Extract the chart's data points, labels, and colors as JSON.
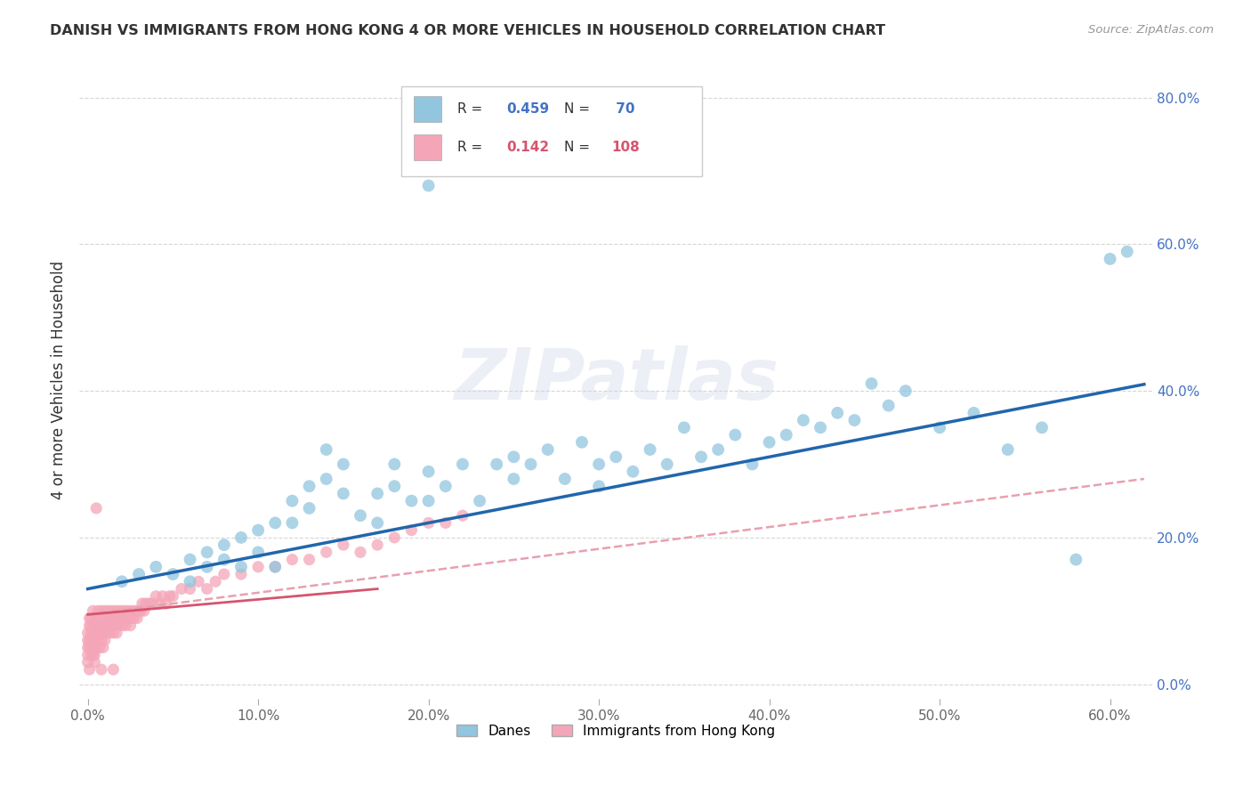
{
  "title": "DANISH VS IMMIGRANTS FROM HONG KONG 4 OR MORE VEHICLES IN HOUSEHOLD CORRELATION CHART",
  "source": "Source: ZipAtlas.com",
  "xlim": [
    -0.005,
    0.625
  ],
  "ylim": [
    -0.02,
    0.85
  ],
  "ylabel": "4 or more Vehicles in Household",
  "legend_label1": "Danes",
  "legend_label2": "Immigrants from Hong Kong",
  "R1": 0.459,
  "N1": 70,
  "R2": 0.142,
  "N2": 108,
  "blue_color": "#92C5DE",
  "pink_color": "#F4A6B8",
  "blue_line_color": "#2166AC",
  "pink_line_color": "#D6546E",
  "pink_dashed_color": "#E8A0AF",
  "watermark": "ZIPatlas",
  "danes_x": [
    0.02,
    0.03,
    0.04,
    0.05,
    0.06,
    0.06,
    0.07,
    0.07,
    0.08,
    0.08,
    0.09,
    0.09,
    0.1,
    0.1,
    0.11,
    0.11,
    0.12,
    0.12,
    0.13,
    0.13,
    0.14,
    0.14,
    0.15,
    0.15,
    0.16,
    0.17,
    0.17,
    0.18,
    0.18,
    0.19,
    0.2,
    0.2,
    0.21,
    0.22,
    0.23,
    0.24,
    0.25,
    0.25,
    0.26,
    0.27,
    0.28,
    0.29,
    0.3,
    0.3,
    0.31,
    0.32,
    0.33,
    0.34,
    0.35,
    0.36,
    0.37,
    0.38,
    0.39,
    0.4,
    0.41,
    0.42,
    0.43,
    0.44,
    0.45,
    0.46,
    0.47,
    0.48,
    0.5,
    0.52,
    0.54,
    0.56,
    0.58,
    0.6,
    0.61,
    0.2
  ],
  "danes_y": [
    0.14,
    0.15,
    0.16,
    0.15,
    0.17,
    0.14,
    0.16,
    0.18,
    0.17,
    0.19,
    0.2,
    0.16,
    0.21,
    0.18,
    0.22,
    0.16,
    0.22,
    0.25,
    0.24,
    0.27,
    0.28,
    0.32,
    0.26,
    0.3,
    0.23,
    0.26,
    0.22,
    0.27,
    0.3,
    0.25,
    0.25,
    0.29,
    0.27,
    0.3,
    0.25,
    0.3,
    0.28,
    0.31,
    0.3,
    0.32,
    0.28,
    0.33,
    0.27,
    0.3,
    0.31,
    0.29,
    0.32,
    0.3,
    0.35,
    0.31,
    0.32,
    0.34,
    0.3,
    0.33,
    0.34,
    0.36,
    0.35,
    0.37,
    0.36,
    0.41,
    0.38,
    0.4,
    0.35,
    0.37,
    0.32,
    0.35,
    0.17,
    0.58,
    0.59,
    0.68
  ],
  "hk_x": [
    0.0,
    0.0,
    0.0,
    0.0,
    0.0,
    0.001,
    0.001,
    0.001,
    0.001,
    0.002,
    0.002,
    0.002,
    0.002,
    0.003,
    0.003,
    0.003,
    0.003,
    0.004,
    0.004,
    0.004,
    0.005,
    0.005,
    0.005,
    0.006,
    0.006,
    0.006,
    0.007,
    0.007,
    0.007,
    0.008,
    0.008,
    0.008,
    0.009,
    0.009,
    0.009,
    0.01,
    0.01,
    0.01,
    0.011,
    0.011,
    0.012,
    0.012,
    0.013,
    0.013,
    0.014,
    0.014,
    0.015,
    0.015,
    0.016,
    0.016,
    0.017,
    0.017,
    0.018,
    0.018,
    0.019,
    0.02,
    0.02,
    0.021,
    0.022,
    0.022,
    0.023,
    0.024,
    0.025,
    0.025,
    0.026,
    0.027,
    0.028,
    0.029,
    0.03,
    0.031,
    0.032,
    0.033,
    0.034,
    0.036,
    0.038,
    0.04,
    0.042,
    0.044,
    0.046,
    0.048,
    0.05,
    0.055,
    0.06,
    0.065,
    0.07,
    0.075,
    0.08,
    0.09,
    0.1,
    0.11,
    0.12,
    0.13,
    0.14,
    0.15,
    0.16,
    0.17,
    0.18,
    0.19,
    0.2,
    0.21,
    0.22,
    0.003,
    0.004,
    0.005,
    0.002,
    0.001,
    0.008,
    0.015
  ],
  "hk_y": [
    0.05,
    0.06,
    0.07,
    0.04,
    0.03,
    0.06,
    0.08,
    0.09,
    0.05,
    0.07,
    0.09,
    0.06,
    0.08,
    0.05,
    0.1,
    0.07,
    0.04,
    0.06,
    0.08,
    0.04,
    0.07,
    0.09,
    0.05,
    0.08,
    0.06,
    0.1,
    0.07,
    0.09,
    0.05,
    0.08,
    0.06,
    0.1,
    0.07,
    0.09,
    0.05,
    0.08,
    0.06,
    0.1,
    0.07,
    0.09,
    0.08,
    0.1,
    0.07,
    0.09,
    0.08,
    0.1,
    0.07,
    0.09,
    0.08,
    0.1,
    0.07,
    0.09,
    0.08,
    0.1,
    0.09,
    0.08,
    0.1,
    0.09,
    0.08,
    0.1,
    0.09,
    0.1,
    0.08,
    0.09,
    0.1,
    0.09,
    0.1,
    0.09,
    0.1,
    0.1,
    0.11,
    0.1,
    0.11,
    0.11,
    0.11,
    0.12,
    0.11,
    0.12,
    0.11,
    0.12,
    0.12,
    0.13,
    0.13,
    0.14,
    0.13,
    0.14,
    0.15,
    0.15,
    0.16,
    0.16,
    0.17,
    0.17,
    0.18,
    0.19,
    0.18,
    0.19,
    0.2,
    0.21,
    0.22,
    0.22,
    0.23,
    0.05,
    0.03,
    0.24,
    0.04,
    0.02,
    0.02,
    0.02
  ]
}
